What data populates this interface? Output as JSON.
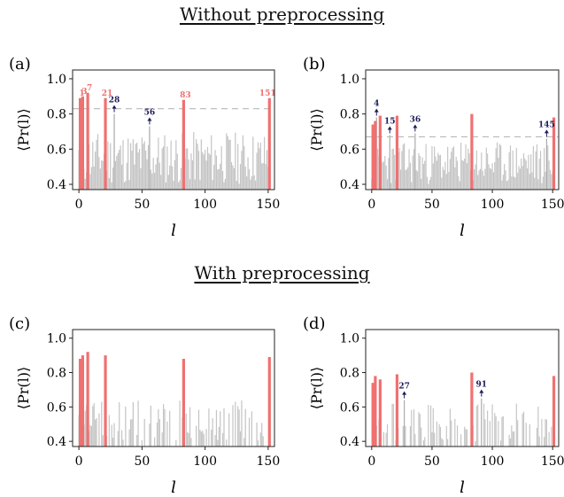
{
  "sections": {
    "top": "Without preprocessing",
    "bottom": "With preprocessing"
  },
  "colors": {
    "highlight": "#f07070",
    "other": "#c4c4c4",
    "annotation": "#1c1c5a",
    "threshold": "#b8b8b8"
  },
  "chart_data": [
    {
      "type": "bar",
      "panel_label": "(a)",
      "xlabel": "l",
      "ylabel": "⟨Pr(l)⟩",
      "xlim": [
        -5,
        155
      ],
      "ylim": [
        0.37,
        1.05
      ],
      "xticks": [
        0,
        50,
        100,
        150
      ],
      "yticks": [
        0.4,
        0.6,
        0.8,
        1.0
      ],
      "baseline": 0.37,
      "threshold": 0.83,
      "dense_bars": true,
      "highlighted": [
        {
          "x": 1,
          "y": 0.89,
          "label": "1"
        },
        {
          "x": 3,
          "y": 0.9,
          "label": "3"
        },
        {
          "x": 7,
          "y": 0.92,
          "label": "7"
        },
        {
          "x": 21,
          "y": 0.89,
          "label": "21"
        },
        {
          "x": 83,
          "y": 0.88,
          "label": "83"
        },
        {
          "x": 151,
          "y": 0.89,
          "label": "151"
        }
      ],
      "annotated": [
        {
          "x": 28,
          "y": 0.8,
          "label": "28"
        },
        {
          "x": 56,
          "y": 0.73,
          "label": "56"
        }
      ],
      "others_range": [
        0.4,
        0.7
      ],
      "seed": 11
    },
    {
      "type": "bar",
      "panel_label": "(b)",
      "xlabel": "l",
      "ylabel": "⟨Pr(l)⟩",
      "xlim": [
        -5,
        155
      ],
      "ylim": [
        0.37,
        1.05
      ],
      "xticks": [
        0,
        50,
        100,
        150
      ],
      "yticks": [
        0.4,
        0.6,
        0.8,
        1.0
      ],
      "baseline": 0.37,
      "threshold": 0.67,
      "dense_bars": true,
      "highlighted": [
        {
          "x": 1,
          "y": 0.74
        },
        {
          "x": 3,
          "y": 0.76
        },
        {
          "x": 7,
          "y": 0.79
        },
        {
          "x": 21,
          "y": 0.79
        },
        {
          "x": 83,
          "y": 0.8
        },
        {
          "x": 151,
          "y": 0.78
        }
      ],
      "annotated": [
        {
          "x": 4,
          "y": 0.78,
          "label": "4"
        },
        {
          "x": 15,
          "y": 0.68,
          "label": "15"
        },
        {
          "x": 36,
          "y": 0.69,
          "label": "36"
        },
        {
          "x": 145,
          "y": 0.66,
          "label": "145"
        }
      ],
      "others_range": [
        0.4,
        0.64
      ],
      "seed": 23
    },
    {
      "type": "bar",
      "panel_label": "(c)",
      "xlabel": "l",
      "ylabel": "⟨Pr(l)⟩",
      "xlim": [
        -5,
        155
      ],
      "ylim": [
        0.37,
        1.05
      ],
      "xticks": [
        0,
        50,
        100,
        150
      ],
      "yticks": [
        0.4,
        0.6,
        0.8,
        1.0
      ],
      "baseline": 0.37,
      "dense_bars": false,
      "highlighted": [
        {
          "x": 1,
          "y": 0.88
        },
        {
          "x": 3,
          "y": 0.9
        },
        {
          "x": 7,
          "y": 0.92
        },
        {
          "x": 21,
          "y": 0.9
        },
        {
          "x": 83,
          "y": 0.88
        },
        {
          "x": 151,
          "y": 0.89
        }
      ],
      "annotated": [],
      "others_range": [
        0.4,
        0.64
      ],
      "seed": 37
    },
    {
      "type": "bar",
      "panel_label": "(d)",
      "xlabel": "l",
      "ylabel": "⟨Pr(l)⟩",
      "xlim": [
        -5,
        155
      ],
      "ylim": [
        0.37,
        1.05
      ],
      "xticks": [
        0,
        50,
        100,
        150
      ],
      "yticks": [
        0.4,
        0.6,
        0.8,
        1.0
      ],
      "baseline": 0.37,
      "dense_bars": false,
      "highlighted": [
        {
          "x": 1,
          "y": 0.74
        },
        {
          "x": 3,
          "y": 0.78
        },
        {
          "x": 7,
          "y": 0.76
        },
        {
          "x": 21,
          "y": 0.79
        },
        {
          "x": 83,
          "y": 0.8
        },
        {
          "x": 151,
          "y": 0.78
        }
      ],
      "annotated": [
        {
          "x": 27,
          "y": 0.64,
          "label": "27"
        },
        {
          "x": 91,
          "y": 0.65,
          "label": "91"
        }
      ],
      "others_range": [
        0.4,
        0.62
      ],
      "seed": 53
    }
  ]
}
